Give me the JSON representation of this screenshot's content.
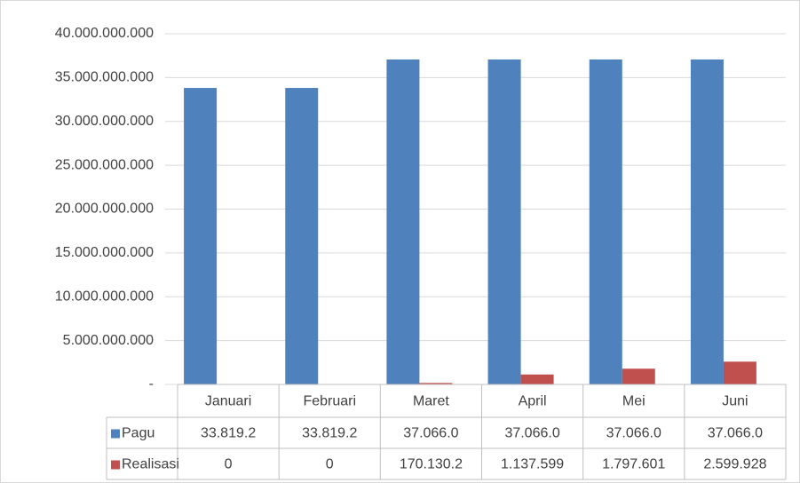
{
  "chart_data": {
    "type": "bar",
    "categories": [
      "Januari",
      "Februari",
      "Maret",
      "April",
      "Mei",
      "Juni"
    ],
    "series": [
      {
        "name": "Pagu",
        "color": "#4f81bd",
        "values": [
          33819200000,
          33819200000,
          37066000000,
          37066000000,
          37066000000,
          37066000000
        ],
        "value_labels": [
          "33.819.2",
          "33.819.2",
          "37.066.0",
          "37.066.0",
          "37.066.0",
          "37.066.0"
        ]
      },
      {
        "name": "Realisasi",
        "color": "#c0504d",
        "values": [
          0,
          0,
          170130200,
          1137599000,
          1797601000,
          2599928000
        ],
        "value_labels": [
          "0",
          "0",
          "170.130.2",
          "1.137.599",
          "1.797.601",
          "2.599.928"
        ]
      }
    ],
    "ylim": [
      0,
      40000000000
    ],
    "yticks": [
      {
        "value": 0,
        "label": "-"
      },
      {
        "value": 5000000000,
        "label": "5.000.000.000"
      },
      {
        "value": 10000000000,
        "label": "10.000.000.000"
      },
      {
        "value": 15000000000,
        "label": "15.000.000.000"
      },
      {
        "value": 20000000000,
        "label": "20.000.000.000"
      },
      {
        "value": 25000000000,
        "label": "25.000.000.000"
      },
      {
        "value": 30000000000,
        "label": "30.000.000.000"
      },
      {
        "value": 35000000000,
        "label": "35.000.000.000"
      },
      {
        "value": 40000000000,
        "label": "40.000.000.000"
      }
    ],
    "grid": true
  }
}
